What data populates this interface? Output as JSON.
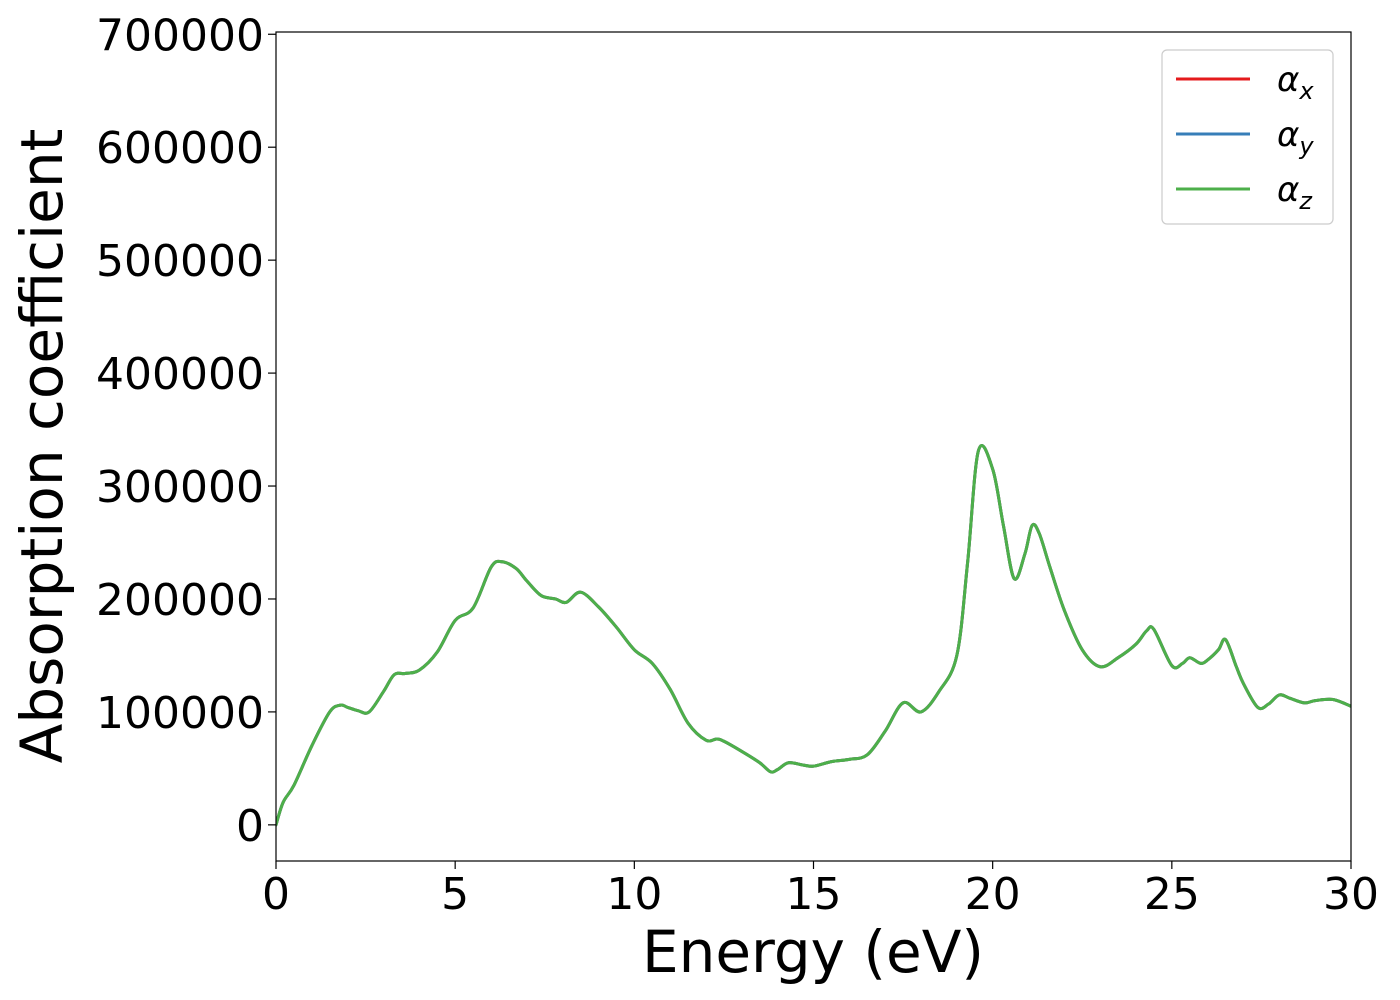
{
  "chart_data": {
    "type": "line",
    "title": "",
    "xlabel": "Energy (eV)",
    "ylabel": "Absorption coefficient",
    "xlim": [
      0,
      30
    ],
    "ylim": [
      -32000,
      702000
    ],
    "xticks": [
      0,
      5,
      10,
      15,
      20,
      25,
      30
    ],
    "xtick_labels": [
      "0",
      "5",
      "10",
      "15",
      "20",
      "25",
      "30"
    ],
    "yticks": [
      0,
      100000,
      200000,
      300000,
      400000,
      500000,
      600000,
      700000
    ],
    "ytick_labels": [
      "0",
      "100000",
      "200000",
      "300000",
      "400000",
      "500000",
      "600000",
      "700000"
    ],
    "grid": false,
    "legend_position": "top-right",
    "x": [
      0,
      0.2,
      0.5,
      1.0,
      1.5,
      1.8,
      2.0,
      2.3,
      2.6,
      3.0,
      3.3,
      3.6,
      4.0,
      4.5,
      5.0,
      5.5,
      6.0,
      6.3,
      6.7,
      7.0,
      7.4,
      7.8,
      8.1,
      8.5,
      9.0,
      9.5,
      10.0,
      10.5,
      11.0,
      11.5,
      12.0,
      12.3,
      12.5,
      13.0,
      13.5,
      13.8,
      14.0,
      14.3,
      14.7,
      15.0,
      15.5,
      16.0,
      16.5,
      17.0,
      17.5,
      18.0,
      18.5,
      19.0,
      19.3,
      19.6,
      20.0,
      20.3,
      20.6,
      20.9,
      21.1,
      21.3,
      21.6,
      22.0,
      22.5,
      23.0,
      23.5,
      24.0,
      24.3,
      24.5,
      25.0,
      25.3,
      25.5,
      25.8,
      26.0,
      26.3,
      26.5,
      26.8,
      27.0,
      27.4,
      27.7,
      28.0,
      28.3,
      28.7,
      29.0,
      29.5,
      30.0
    ],
    "series": [
      {
        "name": "α_x",
        "color": "#e41a1c",
        "values": [
          0,
          20000,
          35000,
          70000,
          100000,
          106000,
          104000,
          101000,
          100000,
          118000,
          133000,
          134000,
          137000,
          153000,
          181000,
          192000,
          228000,
          233000,
          227000,
          216000,
          203000,
          200000,
          197000,
          206000,
          193000,
          175000,
          155000,
          143000,
          120000,
          90000,
          75000,
          76000,
          74000,
          65000,
          55000,
          47000,
          49000,
          55000,
          53000,
          52000,
          56000,
          58000,
          62000,
          83000,
          108000,
          100000,
          118000,
          150000,
          232000,
          331000,
          315000,
          265000,
          218000,
          240000,
          265000,
          258000,
          228000,
          190000,
          155000,
          140000,
          148000,
          160000,
          172000,
          173000,
          141000,
          143000,
          148000,
          143000,
          146000,
          155000,
          164000,
          140000,
          125000,
          104000,
          107000,
          115000,
          112000,
          108000,
          110000,
          111000,
          105000
        ]
      },
      {
        "name": "α_y",
        "color": "#377eb8",
        "values": [
          0,
          20000,
          35000,
          70000,
          100000,
          106000,
          104000,
          101000,
          100000,
          118000,
          133000,
          134000,
          137000,
          153000,
          181000,
          192000,
          228000,
          233000,
          227000,
          216000,
          203000,
          200000,
          197000,
          206000,
          193000,
          175000,
          155000,
          143000,
          120000,
          90000,
          75000,
          76000,
          74000,
          65000,
          55000,
          47000,
          49000,
          55000,
          53000,
          52000,
          56000,
          58000,
          62000,
          83000,
          108000,
          100000,
          118000,
          150000,
          232000,
          331000,
          315000,
          265000,
          218000,
          240000,
          265000,
          258000,
          228000,
          190000,
          155000,
          140000,
          148000,
          160000,
          172000,
          173000,
          141000,
          143000,
          148000,
          143000,
          146000,
          155000,
          164000,
          140000,
          125000,
          104000,
          107000,
          115000,
          112000,
          108000,
          110000,
          111000,
          105000
        ]
      },
      {
        "name": "α_z",
        "color": "#4daf4a",
        "values": [
          0,
          20000,
          35000,
          70000,
          100000,
          106000,
          104000,
          101000,
          100000,
          118000,
          133000,
          134000,
          137000,
          153000,
          181000,
          192000,
          228000,
          233000,
          227000,
          216000,
          203000,
          200000,
          197000,
          206000,
          193000,
          175000,
          155000,
          143000,
          120000,
          90000,
          75000,
          76000,
          74000,
          65000,
          55000,
          47000,
          49000,
          55000,
          53000,
          52000,
          56000,
          58000,
          62000,
          83000,
          108000,
          100000,
          118000,
          150000,
          232000,
          331000,
          315000,
          265000,
          218000,
          240000,
          265000,
          258000,
          228000,
          190000,
          155000,
          140000,
          148000,
          160000,
          172000,
          173000,
          141000,
          143000,
          148000,
          143000,
          146000,
          155000,
          164000,
          140000,
          125000,
          104000,
          107000,
          115000,
          112000,
          108000,
          110000,
          111000,
          105000
        ]
      }
    ],
    "legend": [
      {
        "symbol": "α",
        "subscript": "x",
        "color": "#e41a1c"
      },
      {
        "symbol": "α",
        "subscript": "y",
        "color": "#377eb8"
      },
      {
        "symbol": "α",
        "subscript": "z",
        "color": "#4daf4a"
      }
    ]
  }
}
